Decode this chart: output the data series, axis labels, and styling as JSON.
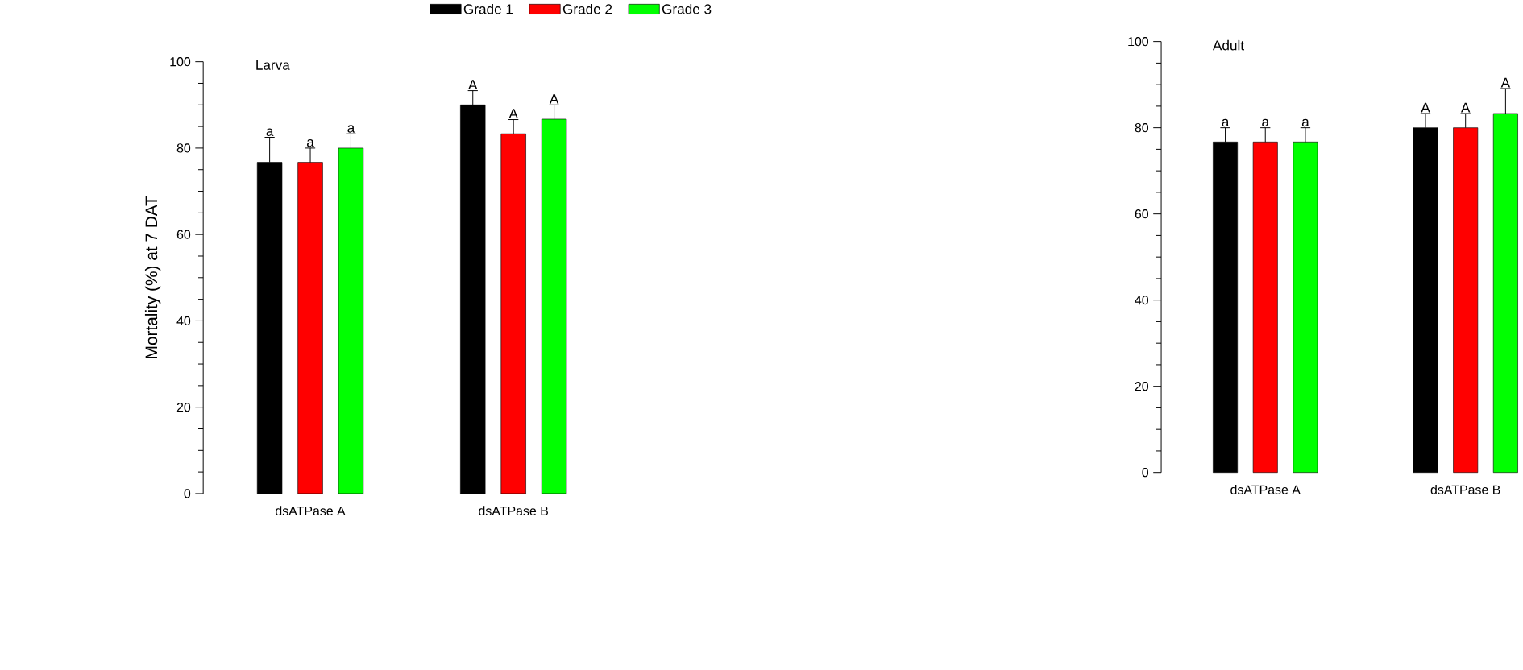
{
  "chart_data": [
    {
      "type": "bar",
      "title": "Larva",
      "ylabel": "Mortality (%) at 7 DAT",
      "categories": [
        "dsATPase A",
        "dsATPase B"
      ],
      "ylim": [
        0,
        100
      ],
      "yticks": [
        0,
        20,
        40,
        60,
        80,
        100
      ],
      "legend": "top",
      "series": [
        {
          "name": "Grade 1",
          "color": "#000000",
          "values": [
            76.7,
            90.0
          ],
          "errors": [
            5.8,
            3.3
          ],
          "value_labels": [
            "a",
            "A"
          ]
        },
        {
          "name": "Grade 2",
          "color": "#ff0000",
          "values": [
            76.7,
            83.3
          ],
          "errors": [
            3.3,
            3.3
          ],
          "value_labels": [
            "a",
            "A"
          ]
        },
        {
          "name": "Grade 3",
          "color": "#00ff00",
          "values": [
            80.0,
            86.7
          ],
          "errors": [
            3.3,
            3.3
          ],
          "value_labels": [
            "a",
            "A"
          ]
        }
      ]
    },
    {
      "type": "bar",
      "title": "Adult",
      "categories": [
        "dsATPase A",
        "dsATPase B"
      ],
      "ylim": [
        0,
        100
      ],
      "yticks": [
        0,
        20,
        40,
        60,
        80,
        100
      ],
      "series": [
        {
          "color": "#000000",
          "values": [
            76.7,
            80.0
          ],
          "errors": [
            3.3,
            3.3
          ],
          "value_labels": [
            "a",
            "A"
          ]
        },
        {
          "color": "#ff0000",
          "values": [
            76.7,
            80.0
          ],
          "errors": [
            3.3,
            3.3
          ],
          "value_labels": [
            "a",
            "A"
          ]
        },
        {
          "color": "#00ff00",
          "values": [
            76.7,
            83.3
          ],
          "errors": [
            3.3,
            5.8
          ],
          "value_labels": [
            "a",
            "A"
          ]
        }
      ]
    }
  ]
}
